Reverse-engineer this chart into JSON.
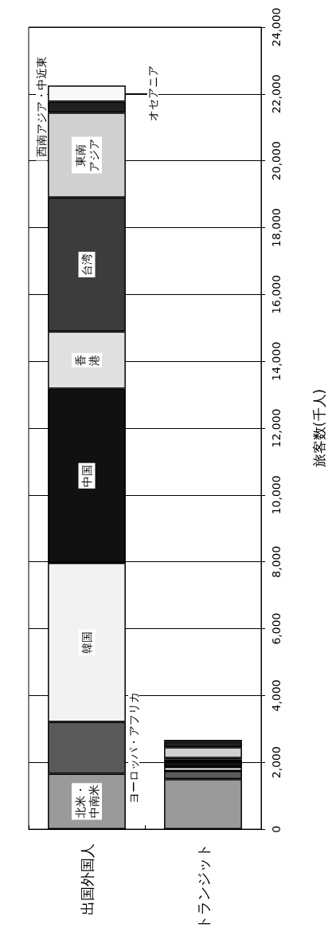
{
  "chart_data": {
    "type": "bar",
    "stacked": true,
    "categories": [
      "出国外国人",
      "トランジット"
    ],
    "ylabel": "旅客数(千人)",
    "ylim": [
      0,
      24000
    ],
    "yticks": [
      0,
      {
        "value": 2000,
        "label": "2,000"
      },
      {
        "value": 4000,
        "label": "4,000"
      },
      {
        "value": 6000,
        "label": "6,000"
      },
      {
        "value": 8000,
        "label": "8,000"
      },
      {
        "value": 10000,
        "label": "10,000"
      },
      {
        "value": 12000,
        "label": "12,000"
      },
      {
        "value": 14000,
        "label": "14,000"
      },
      {
        "value": 16000,
        "label": "16,000"
      },
      {
        "value": 18000,
        "label": "18,000"
      },
      {
        "value": 20000,
        "label": "20,000"
      },
      {
        "value": 22000,
        "label": "22,000"
      },
      {
        "value": 24000,
        "label": "24,000"
      }
    ],
    "grid": "y",
    "legend": false,
    "series": [
      {
        "name": "北米・中南米",
        "color": "#9a9a9a",
        "values": [
          1660,
          1500
        ]
      },
      {
        "name": "ヨーロッパ・アフリカ",
        "color": "#5a5a5a",
        "values": [
          1550,
          240
        ]
      },
      {
        "name": "韓国",
        "color": "#f2f2f2",
        "values": [
          4760,
          120
        ]
      },
      {
        "name": "中国",
        "color": "#111111",
        "values": [
          5210,
          170
        ]
      },
      {
        "name": "香港",
        "color": "#e0e0e0",
        "values": [
          1710,
          60
        ]
      },
      {
        "name": "台湾",
        "color": "#3c3c3c",
        "values": [
          4010,
          40
        ]
      },
      {
        "name": "東南アジア",
        "color": "#d0d0d0",
        "values": [
          2540,
          320
        ]
      },
      {
        "name": "西南アジア・中近東",
        "color": "#202020",
        "values": [
          330,
          160
        ]
      },
      {
        "name": "オセアニア",
        "color": "#f8f8f8",
        "values": [
          480,
          60
        ]
      }
    ]
  }
}
